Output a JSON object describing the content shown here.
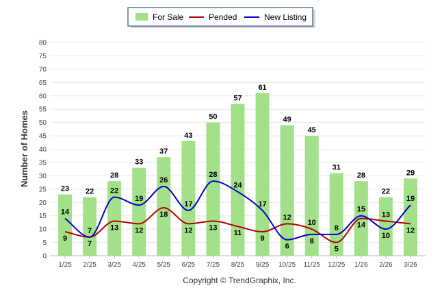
{
  "chart_data": {
    "type": "bar",
    "categories": [
      "1/25",
      "2/25",
      "3/25",
      "4/25",
      "5/25",
      "6/25",
      "7/25",
      "8/25",
      "9/25",
      "10/25",
      "11/25",
      "12/25",
      "1/26",
      "2/26",
      "3/26"
    ],
    "series": [
      {
        "name": "For Sale",
        "kind": "bar",
        "color": "#a3e08a",
        "values": [
          23,
          22,
          28,
          33,
          37,
          43,
          50,
          57,
          61,
          49,
          45,
          31,
          28,
          22,
          29
        ]
      },
      {
        "name": "Pended",
        "kind": "line",
        "color": "#b30000",
        "values": [
          9,
          7,
          13,
          12,
          18,
          12,
          13,
          11,
          9,
          12,
          10,
          5,
          14,
          13,
          12
        ]
      },
      {
        "name": "New Listing",
        "kind": "line",
        "color": "#0000cc",
        "values": [
          14,
          7,
          22,
          19,
          26,
          17,
          28,
          24,
          17,
          6,
          8,
          8,
          15,
          10,
          19
        ]
      }
    ],
    "ylabel": "Number of Homes",
    "ylim": [
      0,
      80
    ],
    "yticks": [
      0,
      5,
      10,
      15,
      20,
      25,
      30,
      35,
      40,
      45,
      50,
      55,
      60,
      65,
      70,
      75,
      80
    ],
    "legend_position": "top-center",
    "grid": true,
    "footer": "Copyright © TrendGraphix, Inc."
  }
}
